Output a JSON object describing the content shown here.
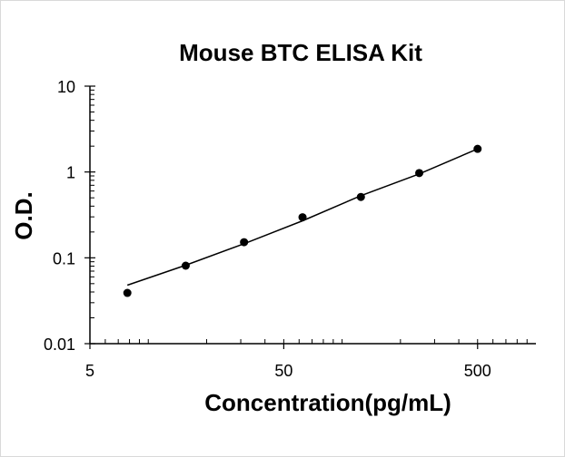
{
  "chart_data": {
    "type": "scatter",
    "title": "Mouse BTC ELISA Kit",
    "xlabel": "Concentration(pg/mL)",
    "ylabel": "O.D.",
    "x_scale": "log",
    "y_scale": "log",
    "xlim": [
      5,
      1000
    ],
    "ylim": [
      0.01,
      10
    ],
    "x_ticks": [
      {
        "value": 5,
        "label": "5"
      },
      {
        "value": 50,
        "label": "50"
      },
      {
        "value": 500,
        "label": "500"
      }
    ],
    "y_ticks": [
      {
        "value": 0.01,
        "label": "0.01"
      },
      {
        "value": 0.1,
        "label": "0.1"
      },
      {
        "value": 1,
        "label": "1"
      },
      {
        "value": 10,
        "label": "10"
      }
    ],
    "grid": false,
    "legend": "none",
    "series": [
      {
        "x": [
          7.8,
          15.6,
          31.2,
          62.5,
          125,
          250,
          500
        ],
        "y": [
          0.039,
          0.081,
          0.152,
          0.297,
          0.512,
          0.972,
          1.86
        ]
      }
    ],
    "trendline": {
      "x": [
        7.8,
        15.6,
        31.2,
        62.5,
        125,
        250,
        500
      ],
      "y": [
        0.048,
        0.082,
        0.146,
        0.27,
        0.53,
        0.95,
        1.86
      ]
    },
    "colors": {
      "marker": "#000000",
      "line": "#000000",
      "axis": "#000000"
    }
  }
}
